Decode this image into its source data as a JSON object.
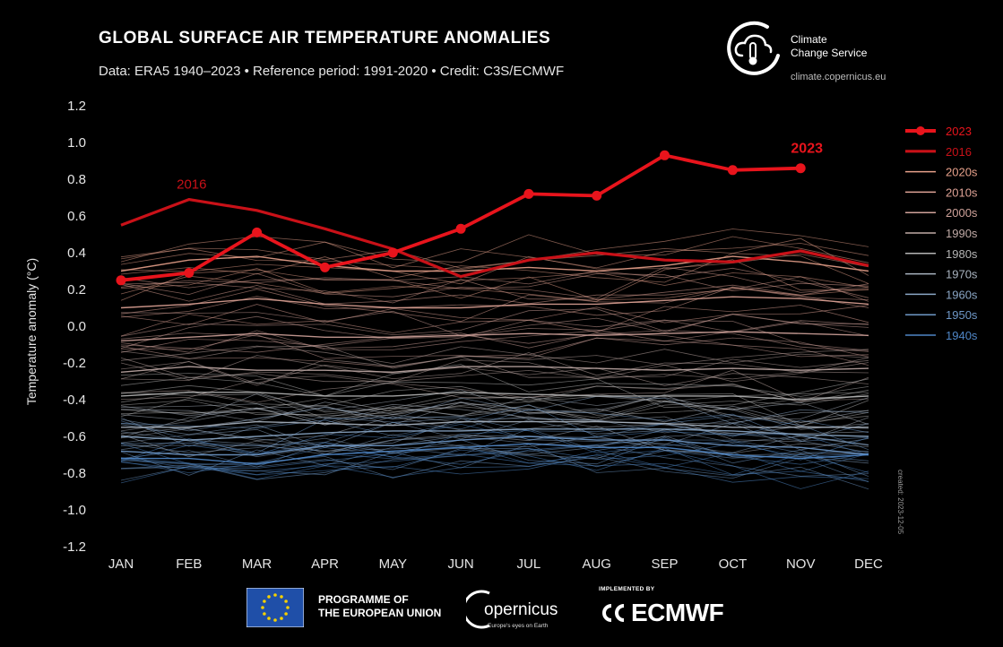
{
  "header": {
    "title": "GLOBAL SURFACE AIR TEMPERATURE ANOMALIES",
    "subtitle": "Data: ERA5 1940–2023 • Reference period: 1991-2020 • Credit: C3S/ECMWF"
  },
  "c3s": {
    "name_line1": "Climate",
    "name_line2": "Change Service",
    "url": "climate.copernicus.eu"
  },
  "created_stamp": "created: 2023-12-05",
  "footer": {
    "eu_line1": "PROGRAMME OF",
    "eu_line2": "THE EUROPEAN UNION",
    "copernicus_word": "opernicus",
    "copernicus_tagline": "Europe's eyes on Earth",
    "ecmwf_implemented": "IMPLEMENTED BY",
    "ecmwf_word": "ECMWF"
  },
  "colors": {
    "highlight": "#e8141c",
    "decade_2020s": "#e6a08a",
    "decade_2010s": "#dfa396",
    "decade_2000s": "#cfa29a",
    "decade_1990s": "#c0aaa6",
    "decade_1980s": "#b4b4b4",
    "decade_1970s": "#a9b3bf",
    "decade_1960s": "#8aa6c5",
    "decade_1950s": "#6e97c6",
    "decade_1940s": "#4f86c6"
  },
  "chart_data": {
    "type": "line",
    "title": "GLOBAL SURFACE AIR TEMPERATURE ANOMALIES",
    "xlabel": "",
    "ylabel": "Temperature anomaly (°C)",
    "categories": [
      "JAN",
      "FEB",
      "MAR",
      "APR",
      "MAY",
      "JUN",
      "JUL",
      "AUG",
      "SEP",
      "OCT",
      "NOV",
      "DEC"
    ],
    "ylim": [
      -1.2,
      1.2
    ],
    "yticks": [
      "1.2",
      "1.0",
      "0.8",
      "0.6",
      "0.4",
      "0.2",
      "0.0",
      "-0.2",
      "-0.4",
      "-0.6",
      "-0.8",
      "-1.0",
      "-1.2"
    ],
    "grid": false,
    "legend_position": "right",
    "legend": [
      "2023",
      "2016",
      "2020s",
      "2010s",
      "2000s",
      "1990s",
      "1980s",
      "1970s",
      "1960s",
      "1950s",
      "1940s"
    ],
    "annotations": [
      {
        "text": "2016",
        "series": "2016",
        "at": "FEB"
      },
      {
        "text": "2023",
        "series": "2023",
        "at": "NOV"
      }
    ],
    "series": [
      {
        "name": "2023",
        "values": [
          0.25,
          0.29,
          0.51,
          0.32,
          0.4,
          0.53,
          0.72,
          0.71,
          0.93,
          0.85,
          0.86,
          null
        ]
      },
      {
        "name": "2016",
        "values": [
          0.55,
          0.69,
          0.63,
          0.53,
          0.42,
          0.27,
          0.36,
          0.4,
          0.36,
          0.35,
          0.41,
          0.33
        ]
      },
      {
        "name": "2020s",
        "values": [
          0.3,
          0.36,
          0.38,
          0.33,
          0.3,
          0.3,
          0.32,
          0.3,
          0.33,
          0.38,
          0.35,
          0.3
        ]
      },
      {
        "name": "2010s",
        "values": [
          0.1,
          0.12,
          0.15,
          0.12,
          0.1,
          0.1,
          0.12,
          0.12,
          0.14,
          0.16,
          0.15,
          0.12
        ]
      },
      {
        "name": "2000s",
        "values": [
          -0.08,
          -0.06,
          -0.04,
          -0.06,
          -0.06,
          -0.05,
          -0.04,
          -0.05,
          -0.04,
          -0.03,
          -0.04,
          -0.05
        ]
      },
      {
        "name": "1990s",
        "values": [
          -0.25,
          -0.22,
          -0.24,
          -0.24,
          -0.25,
          -0.22,
          -0.22,
          -0.23,
          -0.24,
          -0.23,
          -0.24,
          -0.23
        ]
      },
      {
        "name": "1980s",
        "values": [
          -0.38,
          -0.36,
          -0.36,
          -0.38,
          -0.38,
          -0.36,
          -0.37,
          -0.38,
          -0.38,
          -0.38,
          -0.4,
          -0.38
        ]
      },
      {
        "name": "1970s",
        "values": [
          -0.55,
          -0.55,
          -0.52,
          -0.53,
          -0.54,
          -0.52,
          -0.52,
          -0.52,
          -0.53,
          -0.55,
          -0.55,
          -0.55
        ]
      },
      {
        "name": "1960s",
        "values": [
          -0.6,
          -0.62,
          -0.6,
          -0.58,
          -0.57,
          -0.57,
          -0.56,
          -0.56,
          -0.56,
          -0.57,
          -0.59,
          -0.6
        ]
      },
      {
        "name": "1950s",
        "values": [
          -0.68,
          -0.7,
          -0.7,
          -0.65,
          -0.65,
          -0.62,
          -0.6,
          -0.62,
          -0.62,
          -0.65,
          -0.66,
          -0.7
        ]
      },
      {
        "name": "1940s",
        "values": [
          -0.72,
          -0.72,
          -0.75,
          -0.7,
          -0.68,
          -0.66,
          -0.64,
          -0.66,
          -0.66,
          -0.7,
          -0.72,
          -0.7
        ]
      }
    ]
  }
}
